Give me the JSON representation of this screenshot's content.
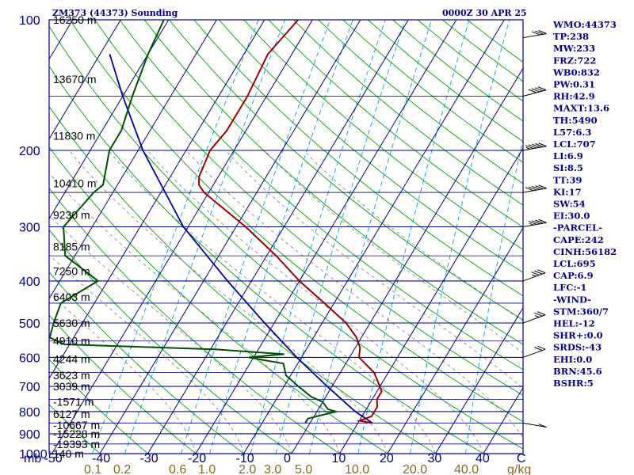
{
  "title_left": "ZM373 (44373) Sounding",
  "title_right": "0000Z 30 APR 25",
  "unit_mb": "mb",
  "unit_c": "C",
  "unit_gkg": "g/kg",
  "pressure_labels": [
    "100",
    "200",
    "300",
    "400",
    "500",
    "600",
    "700",
    "800",
    "900",
    "1000"
  ],
  "height_labels": [
    "16250 m",
    "13670 m",
    "11830 m",
    "10410 m",
    "9230 m",
    "8185 m",
    "7250 m",
    "6403 m",
    "5630 m",
    "4910 m",
    "4244 m",
    "3623 m",
    "3039 m",
    "-1571 m",
    "6127 m",
    "-10667 m",
    "-15228 m",
    "-19393 m",
    "140 m"
  ],
  "temp_labels": [
    "-50",
    "-40",
    "-30",
    "-20",
    "-10",
    "0",
    "10",
    "20",
    "30",
    "40"
  ],
  "mixing_labels": [
    "0.1",
    "0.2",
    "0.6",
    "1.0",
    "2.0",
    "3.0",
    "5.0",
    "10.0",
    "20.0",
    "40.0"
  ],
  "indices": [
    "WMO:44373",
    "TP:238",
    "MW:233",
    "FRZ:722",
    "WB0:832",
    "PW:0.31",
    "RH:42.9",
    "MAXT:13.6",
    "TH:5490",
    "L57:6.3",
    "LCL:707",
    "LI:6.9",
    "SI:8.5",
    "TT:39",
    "KI:17",
    "SW:54",
    "EI:30.0",
    "-PARCEL-",
    "CAPE:242",
    "CINH:56182",
    "LCL:695",
    "CAP:6.9",
    "LFC:-1",
    "-WIND-",
    "STM:360/7",
    "HEL:-12",
    "SHR+:0.0",
    "SRDS:-43",
    "EHI:0.0",
    "BRN:45.6",
    "BSHR:5"
  ],
  "colors": {
    "isobar": "#000080",
    "isotherm": "#000080",
    "dry_adiabat": "#00a000",
    "moist_adiabat": "#808080",
    "mixing_ratio": "#00a0e0",
    "temperature": "#a00000",
    "dewpoint": "#005000",
    "parcel": "#0000a0"
  },
  "chart_data": {
    "type": "skew-t",
    "title": "ZM373 (44373) Sounding",
    "time": "0000Z 30 APR 25",
    "xlabel": "C",
    "ylabel": "mb",
    "ylim": [
      1000,
      100
    ],
    "xlim": [
      -50,
      50
    ],
    "y_scale": "log",
    "grid": true,
    "temperature": [
      {
        "p": 850,
        "t": 13
      },
      {
        "p": 840,
        "t": 10
      },
      {
        "p": 820,
        "t": 12
      },
      {
        "p": 800,
        "t": 12
      },
      {
        "p": 780,
        "t": 12
      },
      {
        "p": 750,
        "t": 11
      },
      {
        "p": 720,
        "t": 11
      },
      {
        "p": 700,
        "t": 10
      },
      {
        "p": 650,
        "t": 7
      },
      {
        "p": 600,
        "t": 2
      },
      {
        "p": 570,
        "t": 1
      },
      {
        "p": 540,
        "t": -1
      },
      {
        "p": 500,
        "t": -5
      },
      {
        "p": 450,
        "t": -12
      },
      {
        "p": 400,
        "t": -20
      },
      {
        "p": 350,
        "t": -28
      },
      {
        "p": 300,
        "t": -38
      },
      {
        "p": 250,
        "t": -51
      },
      {
        "p": 240,
        "t": -53
      },
      {
        "p": 230,
        "t": -54
      },
      {
        "p": 200,
        "t": -55
      },
      {
        "p": 180,
        "t": -54
      },
      {
        "p": 160,
        "t": -54
      },
      {
        "p": 150,
        "t": -54
      },
      {
        "p": 120,
        "t": -55
      },
      {
        "p": 100,
        "t": -53
      }
    ],
    "dewpoint": [
      {
        "p": 850,
        "t": -1
      },
      {
        "p": 830,
        "t": -1
      },
      {
        "p": 800,
        "t": 4
      },
      {
        "p": 790,
        "t": 2
      },
      {
        "p": 760,
        "t": 0
      },
      {
        "p": 740,
        "t": -3
      },
      {
        "p": 700,
        "t": -7
      },
      {
        "p": 660,
        "t": -11
      },
      {
        "p": 620,
        "t": -13
      },
      {
        "p": 610,
        "t": -17
      },
      {
        "p": 600,
        "t": -21
      },
      {
        "p": 590,
        "t": -14
      },
      {
        "p": 575,
        "t": -29
      },
      {
        "p": 560,
        "t": -61
      },
      {
        "p": 540,
        "t": -65
      },
      {
        "p": 500,
        "t": -66
      },
      {
        "p": 450,
        "t": -67
      },
      {
        "p": 400,
        "t": -62
      },
      {
        "p": 350,
        "t": -72
      },
      {
        "p": 300,
        "t": -76
      },
      {
        "p": 250,
        "t": -74
      },
      {
        "p": 240,
        "t": -73
      },
      {
        "p": 200,
        "t": -76
      },
      {
        "p": 180,
        "t": -76
      },
      {
        "p": 150,
        "t": -78
      },
      {
        "p": 120,
        "t": -80
      },
      {
        "p": 100,
        "t": -81
      }
    ],
    "parcel": [
      {
        "p": 850,
        "t": 13
      },
      {
        "p": 800,
        "t": 8
      },
      {
        "p": 700,
        "t": -1
      },
      {
        "p": 600,
        "t": -11
      },
      {
        "p": 500,
        "t": -22
      },
      {
        "p": 400,
        "t": -35
      },
      {
        "p": 300,
        "t": -51
      },
      {
        "p": 200,
        "t": -69
      },
      {
        "p": 150,
        "t": -80
      },
      {
        "p": 120,
        "t": -88
      }
    ],
    "winds": [
      {
        "p": 850,
        "speed": 10,
        "dir": 260
      },
      {
        "p": 600,
        "speed": 20,
        "dir": 290
      },
      {
        "p": 500,
        "speed": 25,
        "dir": 290
      },
      {
        "p": 400,
        "speed": 35,
        "dir": 290
      },
      {
        "p": 300,
        "speed": 45,
        "dir": 280
      },
      {
        "p": 250,
        "speed": 50,
        "dir": 280
      },
      {
        "p": 200,
        "speed": 55,
        "dir": 280
      },
      {
        "p": 150,
        "speed": 40,
        "dir": 285
      },
      {
        "p": 110,
        "speed": 30,
        "dir": 280
      }
    ]
  }
}
